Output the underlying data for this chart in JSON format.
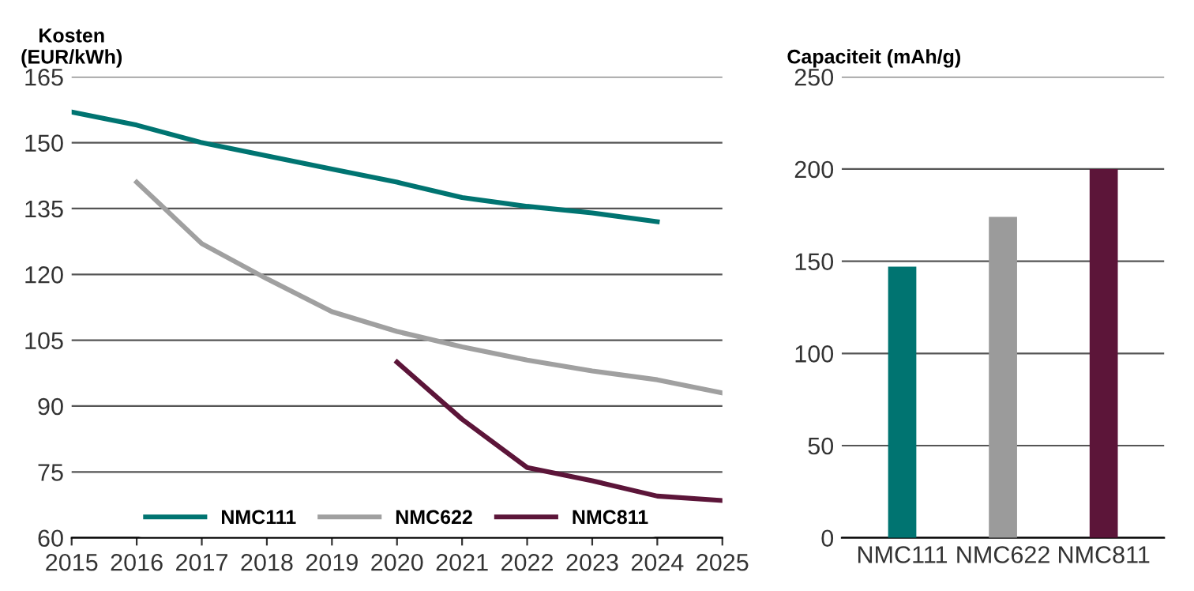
{
  "chart_data": [
    {
      "type": "line",
      "ylabel": "Kosten\n(EUR/kWh)",
      "xlim": [
        2015,
        2025
      ],
      "xticks": [
        2015,
        2016,
        2017,
        2018,
        2019,
        2020,
        2021,
        2022,
        2023,
        2024,
        2025
      ],
      "ylim": [
        60,
        165
      ],
      "yticks": [
        60,
        75,
        90,
        105,
        120,
        135,
        150,
        165
      ],
      "grid": "y",
      "legend": "bottom",
      "series": [
        {
          "name": "NMC111",
          "color": "#007471",
          "x": [
            2015,
            2016,
            2017,
            2018,
            2019,
            2020,
            2021,
            2022,
            2023,
            2024
          ],
          "values": [
            157,
            154,
            150,
            147,
            144,
            141,
            137.5,
            135.5,
            134,
            132
          ]
        },
        {
          "name": "NMC622",
          "color": "#a0a0a0",
          "x": [
            2016,
            2017,
            2018,
            2019,
            2020,
            2021,
            2022,
            2023,
            2024,
            2025
          ],
          "values": [
            141,
            127,
            119,
            111.5,
            107,
            103.5,
            100.5,
            98,
            96,
            93
          ]
        },
        {
          "name": "NMC811",
          "color": "#5c1539",
          "x": [
            2020,
            2021,
            2022,
            2023,
            2024,
            2025
          ],
          "values": [
            100,
            87,
            76,
            73,
            69.5,
            68.5
          ]
        }
      ]
    },
    {
      "type": "bar",
      "ylabel": "Capaciteit (mAh/g)",
      "categories": [
        "NMC111",
        "NMC622",
        "NMC811"
      ],
      "values": [
        147,
        174,
        200
      ],
      "colors": [
        "#007471",
        "#9b9b9b",
        "#5c1539"
      ],
      "ylim": [
        0,
        250
      ],
      "yticks": [
        0,
        50,
        100,
        150,
        200,
        250
      ],
      "grid": "y"
    }
  ]
}
